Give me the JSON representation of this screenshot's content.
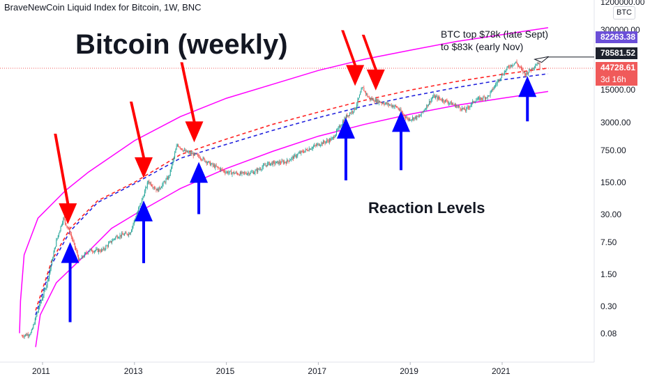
{
  "header": "BraveNewCoin Liquid Index for Bitcoin, 1W, BNC",
  "annotations": {
    "title": "Bitcoin (weekly)",
    "reaction": "Reaction Levels",
    "note_line1": "BTC top $78k (late Sept)",
    "note_line2": "to $83k (early Nov)"
  },
  "axis_badge": "BTC",
  "price_tags": [
    {
      "label": "82263.38",
      "color": "#6b4fd8"
    },
    {
      "label": "78581.52",
      "color": "#1e222d"
    },
    {
      "label": "44728.61",
      "color": "#f05a5a"
    },
    {
      "label": "3d 16h",
      "color": "#f05a5a"
    }
  ],
  "colors": {
    "band": "#ff00ff",
    "red_dashed": "#ff2222",
    "blue_dashed": "#2222dd",
    "arrow_red": "#ff0000",
    "arrow_blue": "#0000ff",
    "candle_up": "#26a69a",
    "candle_down": "#ef5350"
  },
  "icons": [
    "arrow-down-red",
    "arrow-up-blue"
  ],
  "chart_data": {
    "type": "candlestick",
    "title": "BraveNewCoin Liquid Index for Bitcoin, 1W, BNC",
    "y_scale": "log",
    "y_ticks": [
      "1200000.00",
      "300000.00",
      "15000.00",
      "3000.00",
      "750.00",
      "150.00",
      "30.00",
      "7.50",
      "1.50",
      "0.30",
      "0.08"
    ],
    "x_ticks": [
      "2011",
      "2013",
      "2015",
      "2017",
      "2019",
      "2021"
    ],
    "ylim": [
      0.03,
      1500000
    ],
    "price_path": [
      [
        2010.55,
        0.07
      ],
      [
        2010.75,
        0.08
      ],
      [
        2010.9,
        0.25
      ],
      [
        2011.1,
        1.0
      ],
      [
        2011.3,
        8
      ],
      [
        2011.45,
        25
      ],
      [
        2011.6,
        12
      ],
      [
        2011.8,
        3
      ],
      [
        2012.0,
        5
      ],
      [
        2012.3,
        5
      ],
      [
        2012.6,
        10
      ],
      [
        2012.9,
        12
      ],
      [
        2013.2,
        80
      ],
      [
        2013.3,
        160
      ],
      [
        2013.5,
        100
      ],
      [
        2013.75,
        200
      ],
      [
        2013.93,
        1000
      ],
      [
        2014.1,
        700
      ],
      [
        2014.4,
        550
      ],
      [
        2014.7,
        350
      ],
      [
        2015.0,
        250
      ],
      [
        2015.3,
        230
      ],
      [
        2015.6,
        250
      ],
      [
        2015.9,
        380
      ],
      [
        2016.3,
        420
      ],
      [
        2016.6,
        650
      ],
      [
        2017.0,
        1000
      ],
      [
        2017.3,
        1300
      ],
      [
        2017.6,
        4000
      ],
      [
        2017.8,
        6000
      ],
      [
        2017.96,
        17000
      ],
      [
        2018.1,
        10000
      ],
      [
        2018.4,
        8000
      ],
      [
        2018.7,
        6500
      ],
      [
        2018.95,
        3500
      ],
      [
        2019.2,
        4000
      ],
      [
        2019.5,
        11000
      ],
      [
        2019.8,
        8500
      ],
      [
        2020.2,
        5500
      ],
      [
        2020.4,
        9000
      ],
      [
        2020.7,
        11000
      ],
      [
        2020.95,
        28000
      ],
      [
        2021.15,
        50000
      ],
      [
        2021.3,
        60000
      ],
      [
        2021.5,
        33000
      ],
      [
        2021.65,
        45000
      ],
      [
        2021.78,
        60000
      ],
      [
        2021.83,
        44728.61
      ]
    ],
    "band_upper": [
      [
        2010.5,
        0.08
      ],
      [
        2010.52,
        0.4
      ],
      [
        2010.6,
        4
      ],
      [
        2010.9,
        25
      ],
      [
        2011.5,
        100
      ],
      [
        2012,
        250
      ],
      [
        2013,
        1200
      ],
      [
        2014,
        4000
      ],
      [
        2015,
        10000
      ],
      [
        2016,
        20000
      ],
      [
        2017,
        40000
      ],
      [
        2018,
        70000
      ],
      [
        2019,
        110000
      ],
      [
        2020,
        170000
      ],
      [
        2021,
        240000
      ],
      [
        2022,
        340000
      ]
    ],
    "band_lower": [
      [
        2010.85,
        0.04
      ],
      [
        2010.95,
        0.2
      ],
      [
        2011.3,
        1.0
      ],
      [
        2011.8,
        3.0
      ],
      [
        2012.5,
        15
      ],
      [
        2013,
        30
      ],
      [
        2014,
        110
      ],
      [
        2015,
        300
      ],
      [
        2016,
        700
      ],
      [
        2017,
        1500
      ],
      [
        2018,
        2700
      ],
      [
        2019,
        4500
      ],
      [
        2020,
        7000
      ],
      [
        2021,
        10000
      ],
      [
        2022,
        14000
      ]
    ],
    "red_dashed": [
      [
        2010.85,
        0.25
      ],
      [
        2011.2,
        3
      ],
      [
        2011.6,
        15
      ],
      [
        2012.2,
        60
      ],
      [
        2013,
        150
      ],
      [
        2014,
        600
      ],
      [
        2015,
        1300
      ],
      [
        2016,
        2700
      ],
      [
        2017,
        5000
      ],
      [
        2018,
        9000
      ],
      [
        2019,
        15000
      ],
      [
        2020,
        23000
      ],
      [
        2021,
        33000
      ],
      [
        2022,
        45000
      ]
    ],
    "blue_dashed": [
      [
        2010.85,
        0.2
      ],
      [
        2011.2,
        2.5
      ],
      [
        2011.6,
        13
      ],
      [
        2012.2,
        55
      ],
      [
        2013,
        140
      ],
      [
        2014,
        500
      ],
      [
        2015,
        1000
      ],
      [
        2016,
        2000
      ],
      [
        2017,
        3800
      ],
      [
        2018,
        6800
      ],
      [
        2019,
        11000
      ],
      [
        2020,
        17000
      ],
      [
        2021,
        25000
      ],
      [
        2022,
        34000
      ]
    ],
    "arrows_red": [
      [
        2011.55,
        15
      ],
      [
        2013.2,
        150
      ],
      [
        2014.3,
        900
      ],
      [
        2017.8,
        15000
      ],
      [
        2018.25,
        12000
      ]
    ],
    "arrows_blue": [
      [
        2011.6,
        10
      ],
      [
        2013.2,
        80
      ],
      [
        2014.4,
        550
      ],
      [
        2017.6,
        5000
      ],
      [
        2018.8,
        7000
      ],
      [
        2021.55,
        40000
      ]
    ]
  }
}
